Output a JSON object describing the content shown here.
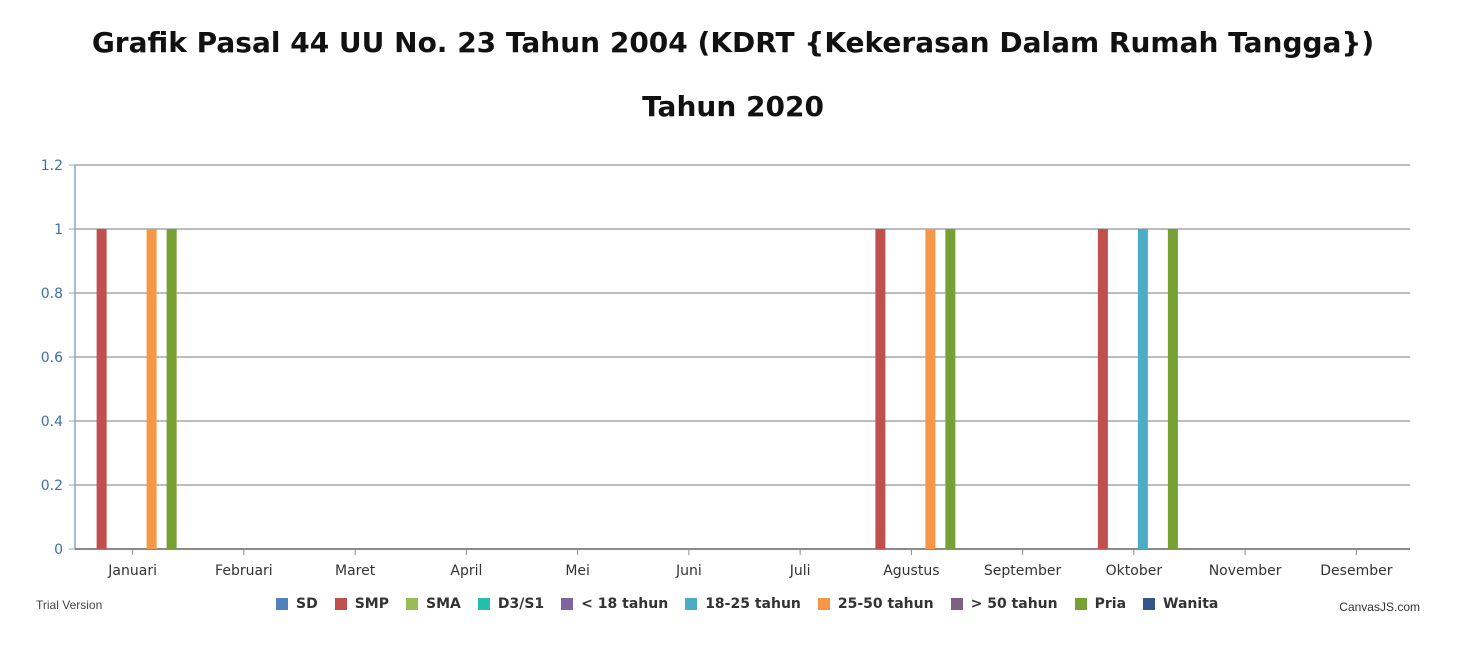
{
  "chart_data": {
    "type": "bar",
    "title": "Grafik Pasal 44 UU No. 23 Tahun 2004 (KDRT {Kekerasan Dalam Rumah Tangga})",
    "subtitle": "Tahun 2020",
    "categories": [
      "Januari",
      "Februari",
      "Maret",
      "April",
      "Mei",
      "Juni",
      "Juli",
      "Agustus",
      "September",
      "Oktober",
      "November",
      "Desember"
    ],
    "ylim": [
      0,
      1.2
    ],
    "yticks": [
      "0",
      "0.2",
      "0.4",
      "0.6",
      "0.8",
      "1",
      "1.2"
    ],
    "ytick_values": [
      0,
      0.2,
      0.4,
      0.6,
      0.8,
      1,
      1.2
    ],
    "grid": true,
    "legend_position": "bottom",
    "series": [
      {
        "name": "SD",
        "color": "#4f81bc",
        "values": [
          0,
          0,
          0,
          0,
          0,
          0,
          0,
          0,
          0,
          0,
          0,
          0
        ]
      },
      {
        "name": "SMP",
        "color": "#c0504e",
        "values": [
          1,
          0,
          0,
          0,
          0,
          0,
          0,
          1,
          0,
          1,
          0,
          0
        ]
      },
      {
        "name": "SMA",
        "color": "#9bbb58",
        "values": [
          0,
          0,
          0,
          0,
          0,
          0,
          0,
          0,
          0,
          0,
          0,
          0
        ]
      },
      {
        "name": "D3/S1",
        "color": "#23bfaa",
        "values": [
          0,
          0,
          0,
          0,
          0,
          0,
          0,
          0,
          0,
          0,
          0,
          0
        ]
      },
      {
        "name": "< 18 tahun",
        "color": "#8064a1",
        "values": [
          0,
          0,
          0,
          0,
          0,
          0,
          0,
          0,
          0,
          0,
          0,
          0
        ]
      },
      {
        "name": "18-25 tahun",
        "color": "#4aacc5",
        "values": [
          0,
          0,
          0,
          0,
          0,
          0,
          0,
          0,
          0,
          1,
          0,
          0
        ]
      },
      {
        "name": "25-50 tahun",
        "color": "#f79647",
        "values": [
          1,
          0,
          0,
          0,
          0,
          0,
          0,
          1,
          0,
          0,
          0,
          0
        ]
      },
      {
        "name": "> 50 tahun",
        "color": "#7f6084",
        "values": [
          0,
          0,
          0,
          0,
          0,
          0,
          0,
          0,
          0,
          0,
          0,
          0
        ]
      },
      {
        "name": "Pria",
        "color": "#77a033",
        "values": [
          1,
          0,
          0,
          0,
          0,
          0,
          0,
          1,
          0,
          1,
          0,
          0
        ]
      },
      {
        "name": "Wanita",
        "color": "#33558b",
        "values": [
          0,
          0,
          0,
          0,
          0,
          0,
          0,
          0,
          0,
          0,
          0,
          0
        ]
      }
    ]
  },
  "footer": {
    "trial": "Trial Version",
    "credit": "CanvasJS.com"
  }
}
